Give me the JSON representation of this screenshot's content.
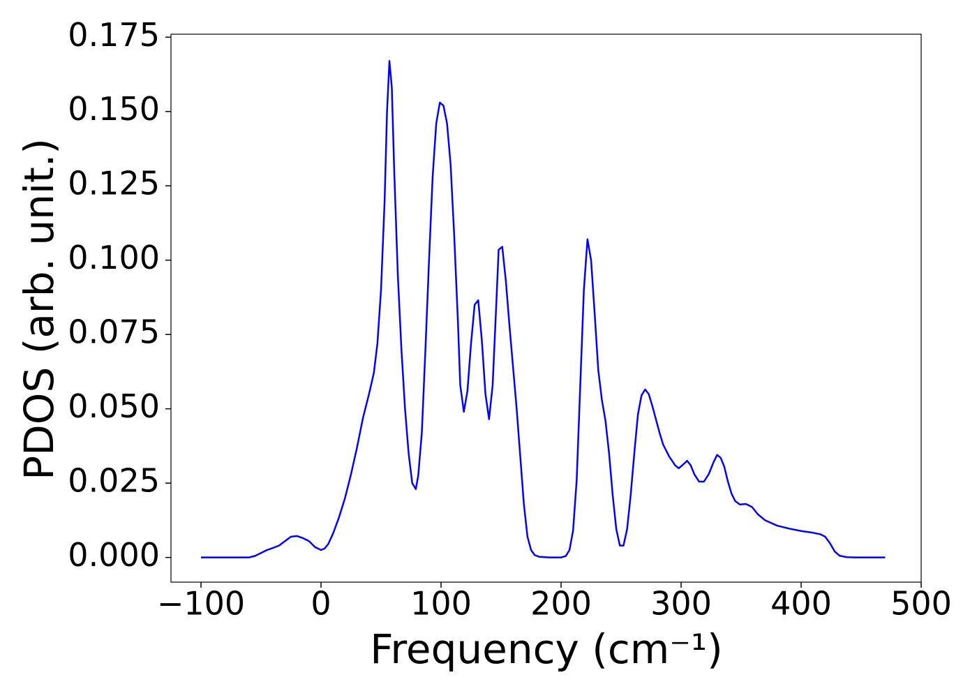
{
  "chart_data": {
    "type": "line",
    "xlabel": "Frequency (cm⁻¹)",
    "ylabel": "PDOS (arb. unit.)",
    "color": "#0000ff",
    "xlim": [
      -125,
      500
    ],
    "ylim": [
      -0.0083,
      0.176
    ],
    "xticks": [
      {
        "value": -100,
        "label": "−100"
      },
      0,
      100,
      200,
      300,
      400,
      500
    ],
    "yticks": [
      {
        "value": 0,
        "label": "0.000"
      },
      0.025,
      {
        "value": 0.05,
        "label": "0.050"
      },
      0.075,
      {
        "value": 0.1,
        "label": "0.100"
      },
      0.125,
      {
        "value": 0.15,
        "label": "0.150"
      },
      0.175
    ],
    "x": [
      -100,
      -60,
      -55,
      -50,
      -45,
      -40,
      -35,
      -30,
      -25,
      -20,
      -15,
      -10,
      -5,
      0,
      3,
      6,
      10,
      15,
      20,
      25,
      30,
      35,
      40,
      44,
      47,
      50,
      53,
      55,
      57,
      59,
      61,
      64,
      67,
      70,
      73,
      76,
      79,
      81,
      84,
      87,
      90,
      93,
      96,
      99,
      102,
      105,
      108,
      111,
      114,
      116,
      119,
      122,
      125,
      128,
      131,
      134,
      137,
      140,
      143,
      146,
      148,
      151,
      154,
      157,
      160,
      163,
      166,
      169,
      172,
      175,
      178,
      182,
      190,
      200,
      204,
      207,
      210,
      213,
      216,
      219,
      222,
      225,
      228,
      231,
      234,
      237,
      240,
      243,
      246,
      249,
      252,
      255,
      258,
      261,
      264,
      267,
      270,
      273,
      276,
      279,
      282,
      285,
      290,
      295,
      298,
      301,
      305,
      308,
      311,
      315,
      319,
      323,
      327,
      330,
      333,
      336,
      339,
      342,
      345,
      349,
      354,
      359,
      364,
      370,
      380,
      390,
      400,
      410,
      416,
      420,
      424,
      428,
      432,
      438,
      445,
      470
    ],
    "values": [
      0,
      0,
      0.0005,
      0.0015,
      0.0025,
      0.0032,
      0.004,
      0.0055,
      0.007,
      0.0072,
      0.0065,
      0.0055,
      0.0035,
      0.0025,
      0.003,
      0.0045,
      0.008,
      0.0135,
      0.02,
      0.028,
      0.037,
      0.047,
      0.055,
      0.062,
      0.072,
      0.09,
      0.12,
      0.15,
      0.167,
      0.158,
      0.13,
      0.095,
      0.07,
      0.05,
      0.035,
      0.025,
      0.023,
      0.0275,
      0.042,
      0.07,
      0.1,
      0.128,
      0.146,
      0.153,
      0.152,
      0.146,
      0.132,
      0.108,
      0.08,
      0.058,
      0.049,
      0.056,
      0.072,
      0.085,
      0.0865,
      0.073,
      0.055,
      0.0465,
      0.058,
      0.085,
      0.1035,
      0.1045,
      0.093,
      0.078,
      0.064,
      0.05,
      0.034,
      0.018,
      0.007,
      0.0025,
      0.0008,
      0.0002,
      0,
      0,
      0.0005,
      0.0025,
      0.009,
      0.026,
      0.058,
      0.09,
      0.107,
      0.1,
      0.082,
      0.063,
      0.053,
      0.046,
      0.035,
      0.021,
      0.0095,
      0.004,
      0.004,
      0.0095,
      0.021,
      0.035,
      0.048,
      0.0545,
      0.0565,
      0.055,
      0.051,
      0.0465,
      0.042,
      0.038,
      0.034,
      0.031,
      0.03,
      0.031,
      0.0325,
      0.031,
      0.028,
      0.0255,
      0.0255,
      0.028,
      0.032,
      0.0345,
      0.0335,
      0.0305,
      0.0255,
      0.0215,
      0.019,
      0.0178,
      0.018,
      0.017,
      0.0145,
      0.0125,
      0.0107,
      0.0097,
      0.0089,
      0.0083,
      0.0078,
      0.007,
      0.0048,
      0.002,
      0.0006,
      0.0001,
      0,
      0
    ]
  }
}
